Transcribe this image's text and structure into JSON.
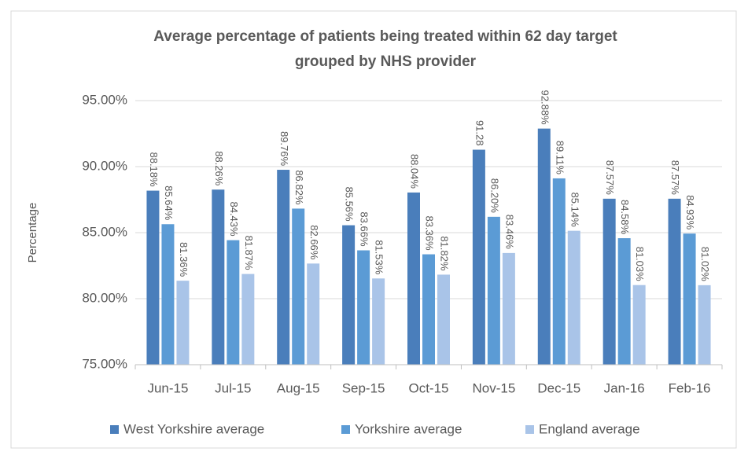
{
  "chart_data": {
    "type": "bar",
    "title": "Average percentage of patients being treated within 62 day target",
    "subtitle": "grouped by NHS provider",
    "y_label": "Percentage",
    "categories": [
      "Jun-15",
      "Jul-15",
      "Aug-15",
      "Sep-15",
      "Oct-15",
      "Nov-15",
      "Dec-15",
      "Jan-16",
      "Feb-16"
    ],
    "series": [
      {
        "name": "West Yorkshire average",
        "color": "#4a7ebb",
        "values": [
          88.18,
          88.26,
          89.76,
          85.56,
          88.04,
          91.28,
          92.88,
          87.57,
          87.57
        ],
        "value_labels": [
          "88.18%",
          "88.26%",
          "89.76%",
          "85.56%",
          "88.04%",
          "91.28",
          "92.88%",
          "87.57%",
          "87.57%"
        ]
      },
      {
        "name": "Yorkshire average",
        "color": "#5b9bd5",
        "values": [
          85.64,
          84.43,
          86.82,
          83.66,
          83.36,
          86.2,
          89.11,
          84.58,
          84.93
        ],
        "value_labels": [
          "85.64%",
          "84.43%",
          "86.82%",
          "83.66%",
          "83.36%",
          "86.20%",
          "89.11%",
          "84.58%",
          "84.93%"
        ]
      },
      {
        "name": "England average",
        "color": "#a9c4e8",
        "values": [
          81.36,
          81.87,
          82.66,
          81.53,
          81.82,
          83.46,
          85.14,
          81.03,
          81.02
        ],
        "value_labels": [
          "81.36%",
          "81.87%",
          "82.66%",
          "81.53%",
          "81.82%",
          "83.46%",
          "85.14%",
          "81.03%",
          "81.02%"
        ]
      }
    ],
    "ylim": [
      75,
      95
    ],
    "yticks": [
      {
        "value": 75,
        "label": "75.00%"
      },
      {
        "value": 80,
        "label": "80.00%"
      },
      {
        "value": 85,
        "label": "85.00%"
      },
      {
        "value": 90,
        "label": "90.00%"
      },
      {
        "value": 95,
        "label": "95.00%"
      }
    ],
    "grid": true,
    "legend": "bottom"
  }
}
